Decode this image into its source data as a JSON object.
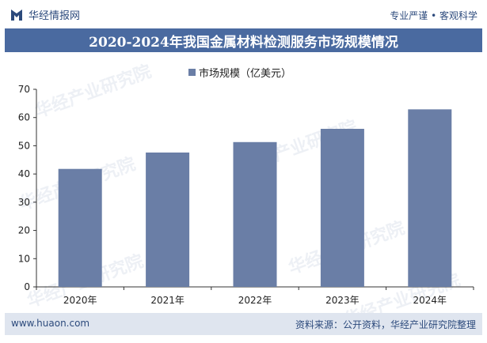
{
  "header": {
    "brand": "华经情报网",
    "tagline": "专业严谨 • 客观科学"
  },
  "watermark": "华经产业研究院",
  "watermark_url": "www.huaon.com",
  "chart_data": {
    "type": "bar",
    "title": "2020-2024年我国金属材料检测服务市场规模情况",
    "categories": [
      "2020年",
      "2021年",
      "2022年",
      "2023年",
      "2024年"
    ],
    "series": [
      {
        "name": "市场规模（亿美元）",
        "values": [
          41.8,
          47.6,
          51.3,
          56.0,
          62.9
        ]
      }
    ],
    "ylim": [
      0,
      70
    ],
    "yticks": [
      0,
      10,
      20,
      30,
      40,
      50,
      60,
      70
    ],
    "grid": false,
    "legend_position": "top-center",
    "colors": {
      "bar": "#6a7ea6",
      "title_bg": "#4a6aa0",
      "footer_bg": "#dfe5ef"
    }
  },
  "footer": {
    "url": "www.huaon.com",
    "source": "资料来源：公开资料，华经产业研究院整理"
  }
}
